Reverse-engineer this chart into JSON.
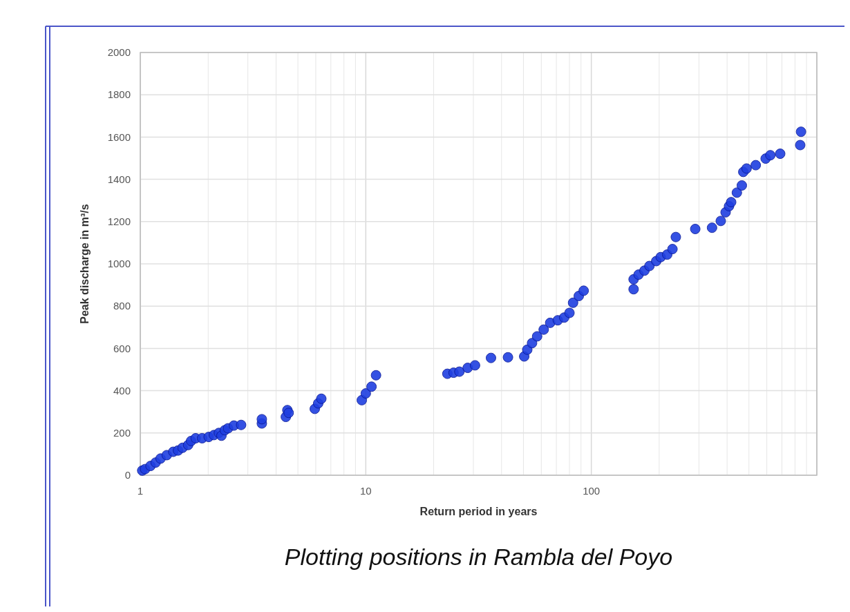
{
  "chart_data": {
    "type": "scatter",
    "title": "Plotting positions in Rambla del Poyo",
    "xlabel": "Return period in years",
    "ylabel": "Peak discharge in m³/s",
    "log": "x",
    "xlim": [
      1,
      1000
    ],
    "xticks": [
      1,
      10,
      100,
      {
        "value": 1000,
        "label": null
      }
    ],
    "ylim": [
      0,
      2000
    ],
    "yticks": [
      0,
      200,
      400,
      600,
      800,
      1000,
      1200,
      1400,
      1600,
      1800,
      2000
    ],
    "grid": true,
    "marker": "circle",
    "series": [
      {
        "color": "#1f3fe0",
        "x": [
          1.02,
          1.05,
          1.11,
          1.17,
          1.23,
          1.31,
          1.4,
          1.47,
          1.54,
          1.63,
          1.68,
          1.76,
          1.88,
          2.01,
          2.12,
          2.23,
          2.29,
          2.37,
          2.45,
          2.6,
          2.8,
          3.46,
          3.46,
          4.42,
          4.49,
          4.55,
          5.94,
          6.15,
          6.35,
          9.6,
          10,
          10.6,
          11.1,
          23,
          24.5,
          26,
          28.3,
          30.5,
          35.9,
          42.7,
          50.4,
          52,
          54.6,
          57.5,
          61.5,
          65.7,
          71,
          75.8,
          80,
          83,
          88,
          92.5,
          154,
          154,
          162,
          172,
          181,
          194,
          203,
          217,
          229,
          237,
          289,
          343,
          375,
          394,
          408,
          417,
          442,
          465,
          472,
          488,
          536,
          593,
          622,
          688,
          844,
          851
        ],
        "values": [
          22,
          29,
          44,
          60,
          79,
          95,
          111,
          117,
          130,
          143,
          162,
          175,
          175,
          181,
          190,
          200,
          187,
          213,
          222,
          235,
          238,
          245,
          265,
          276,
          308,
          295,
          314,
          340,
          362,
          355,
          387,
          419,
          473,
          480,
          485,
          490,
          508,
          520,
          555,
          558,
          562,
          594,
          625,
          657,
          689,
          721,
          733,
          746,
          768,
          816,
          848,
          873,
          880,
          927,
          949,
          968,
          990,
          1013,
          1032,
          1044,
          1070,
          1127,
          1165,
          1171,
          1203,
          1244,
          1273,
          1292,
          1337,
          1371,
          1435,
          1451,
          1467,
          1498,
          1514,
          1521,
          1562,
          1625
        ]
      }
    ]
  }
}
